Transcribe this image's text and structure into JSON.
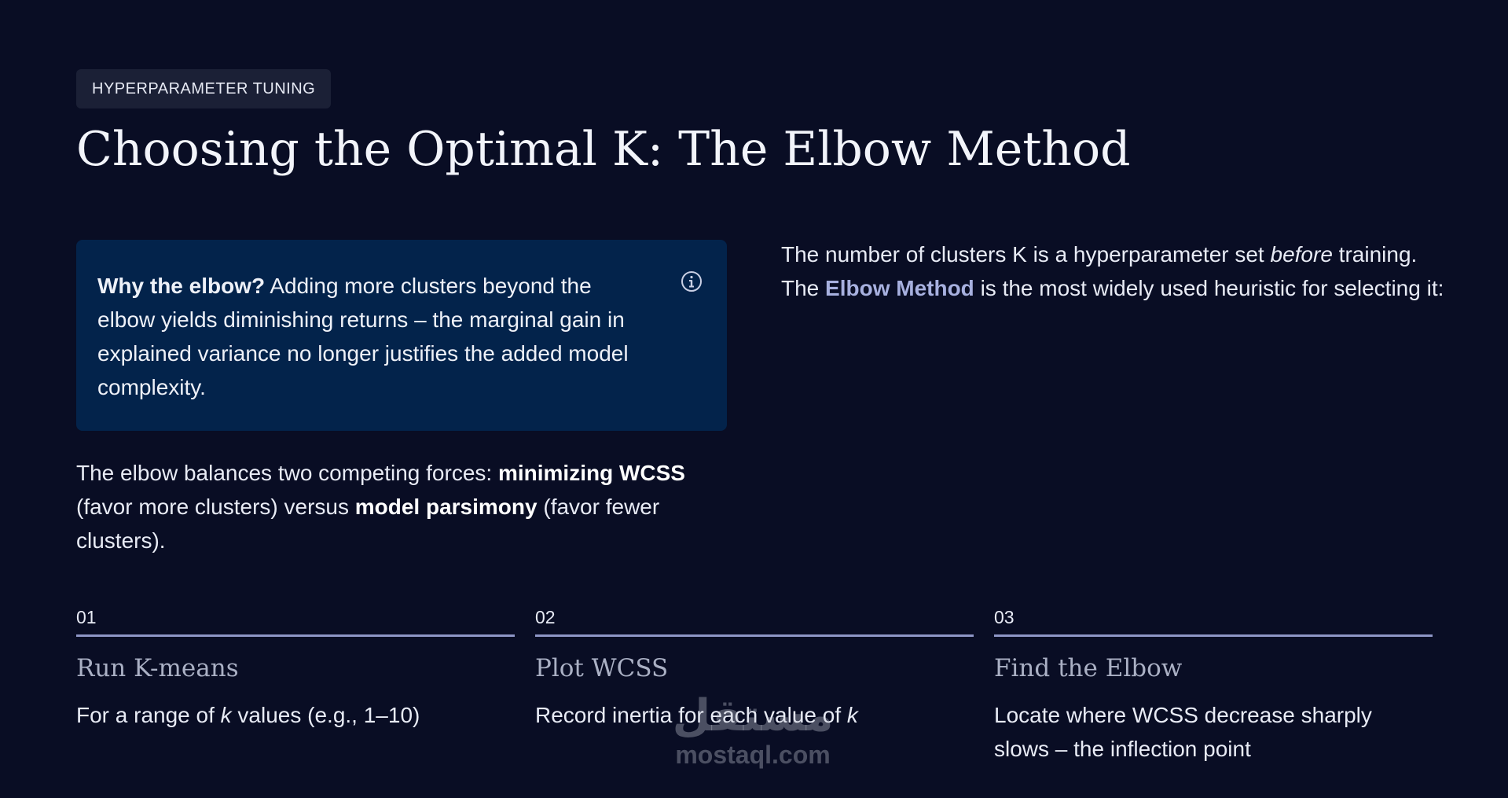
{
  "header": {
    "tag": "HYPERPARAMETER TUNING",
    "title": "Choosing the Optimal K: The Elbow Method"
  },
  "callout": {
    "lead": "Why the elbow?",
    "text": " Adding more clusters beyond the elbow yields diminishing returns – the marginal gain in explained variance no longer justifies the added model complexity.",
    "icon": "info-icon"
  },
  "balance": {
    "part1": "The elbow balances two competing forces: ",
    "bold1": "minimizing WCSS",
    "part2": " (favor more clusters) versus ",
    "bold2": "model parsimony",
    "part3": " (favor fewer clusters)."
  },
  "intro": {
    "part1": "The number of clusters K is a hyperparameter set ",
    "italic": "before",
    "part2": " training. The ",
    "accent": "Elbow Method",
    "part3": " is the most widely used heuristic for selecting it:"
  },
  "steps": [
    {
      "num": "01",
      "title": "Run K-means",
      "desc_pre": "For a range of ",
      "desc_italic": "k",
      "desc_post": " values (e.g., 1–10)"
    },
    {
      "num": "02",
      "title": "Plot WCSS",
      "desc_pre": "Record inertia for each value of ",
      "desc_italic": "k",
      "desc_post": ""
    },
    {
      "num": "03",
      "title": "Find the Elbow",
      "desc_pre": "Locate where WCSS decrease sharply slows – the inflection point",
      "desc_italic": "",
      "desc_post": ""
    }
  ],
  "watermark": {
    "logo": "مستقل",
    "site": "mostaql.com"
  },
  "colors": {
    "background": "#090d24",
    "callout": "#03234b",
    "accent": "#a7b0df",
    "divider": "#8e96c6"
  }
}
